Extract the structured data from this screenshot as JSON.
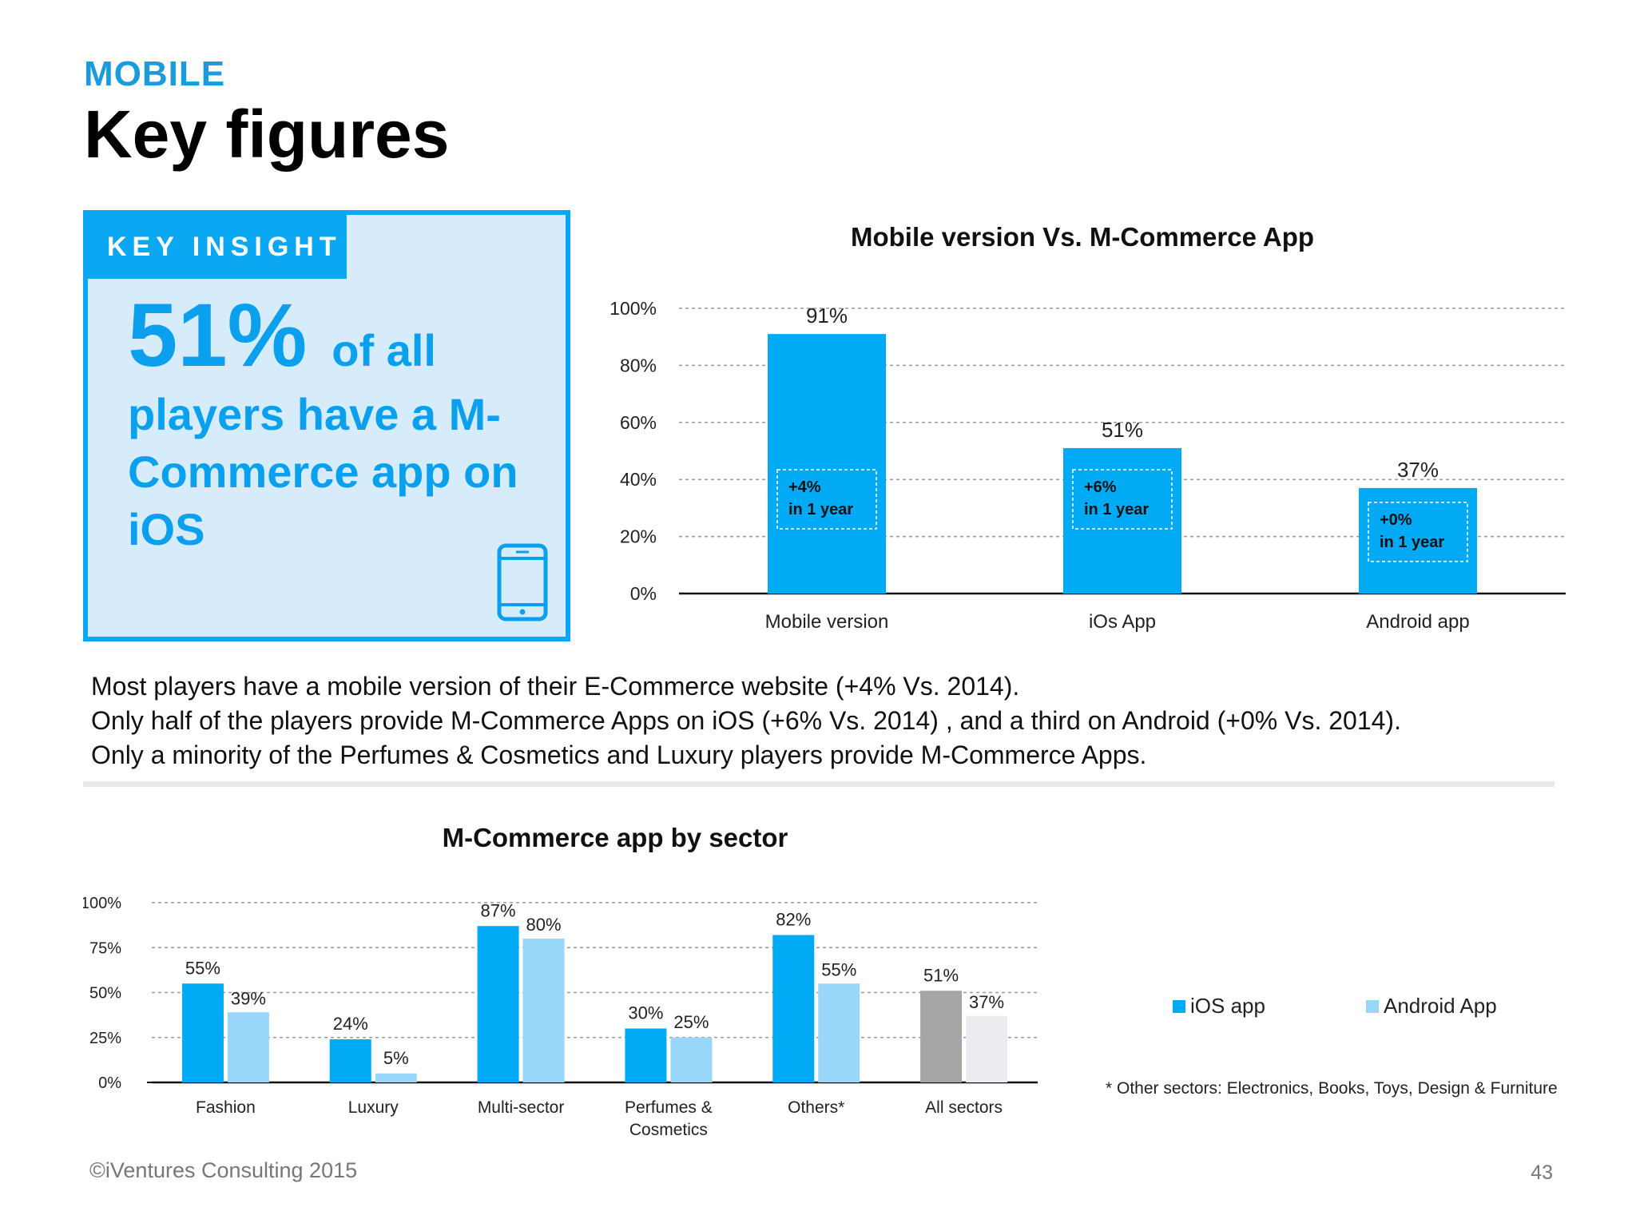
{
  "header": {
    "section": "MOBILE",
    "title": "Key figures"
  },
  "insight": {
    "tab_label": "KEY INSIGHT",
    "big_value": "51%",
    "big_suffix": "of all",
    "body": "players have a M-Commerce app on iOS",
    "icon": "smartphone-icon"
  },
  "summary": {
    "lines": [
      "Most players have a mobile version of their E-Commerce website (+4% Vs.  2014).",
      "Only half of the players provide M-Commerce Apps on iOS (+6% Vs.  2014) , and a third on Android (+0% Vs.  2014).",
      "Only a minority of the Perfumes & Cosmetics and Luxury players provide M-Commerce Apps."
    ]
  },
  "chart_data": [
    {
      "type": "bar",
      "title": "Mobile version Vs.  M-Commerce App",
      "categories": [
        "Mobile version",
        "iOs App",
        "Android app"
      ],
      "values": [
        91,
        51,
        37
      ],
      "value_labels": [
        "91%",
        "51%",
        "37%"
      ],
      "annotations": [
        [
          "+4%",
          "in 1 year"
        ],
        [
          "+6%",
          "in 1 year"
        ],
        [
          "+0%",
          "in 1 year"
        ]
      ],
      "ylim": [
        0,
        100
      ],
      "yticks": [
        "0%",
        "20%",
        "40%",
        "60%",
        "80%",
        "100%"
      ],
      "ytick_values": [
        0,
        20,
        40,
        60,
        80,
        100
      ],
      "grid": true,
      "bar_color": "#00aaf5"
    },
    {
      "type": "bar",
      "title": "M-Commerce app by sector",
      "categories": [
        "Fashion",
        "Luxury",
        "Multi-sector",
        "Perfumes & Cosmetics",
        "Others*",
        "All sectors"
      ],
      "category_lines": [
        [
          "Fashion"
        ],
        [
          "Luxury"
        ],
        [
          "Multi-sector"
        ],
        [
          "Perfumes &",
          "Cosmetics"
        ],
        [
          "Others*"
        ],
        [
          "All sectors"
        ]
      ],
      "series": [
        {
          "name": "iOS app",
          "values": [
            55,
            24,
            87,
            30,
            82,
            51
          ],
          "labels": [
            "55%",
            "24%",
            "87%",
            "30%",
            "82%",
            "51%"
          ],
          "color": "#00aaf5"
        },
        {
          "name": "Android App",
          "values": [
            39,
            5,
            80,
            25,
            55,
            37
          ],
          "labels": [
            "39%",
            "5%",
            "80%",
            "25%",
            "55%",
            "37%"
          ],
          "color": "#99d7fa"
        }
      ],
      "highlight_category": {
        "index": 5,
        "colors": [
          "#a6a6a8",
          "#ececf0"
        ]
      },
      "ylim": [
        0,
        100
      ],
      "yticks": [
        "0%",
        "25%",
        "50%",
        "75%",
        "100%"
      ],
      "ytick_values": [
        0,
        25,
        50,
        75,
        100
      ],
      "grid": true,
      "legend": "right",
      "footnote": "* Other sectors: Electronics, Books, Toys, Design & Furniture"
    }
  ],
  "footer": {
    "copyright": "©iVentures Consulting 2015",
    "page_number": "43"
  }
}
